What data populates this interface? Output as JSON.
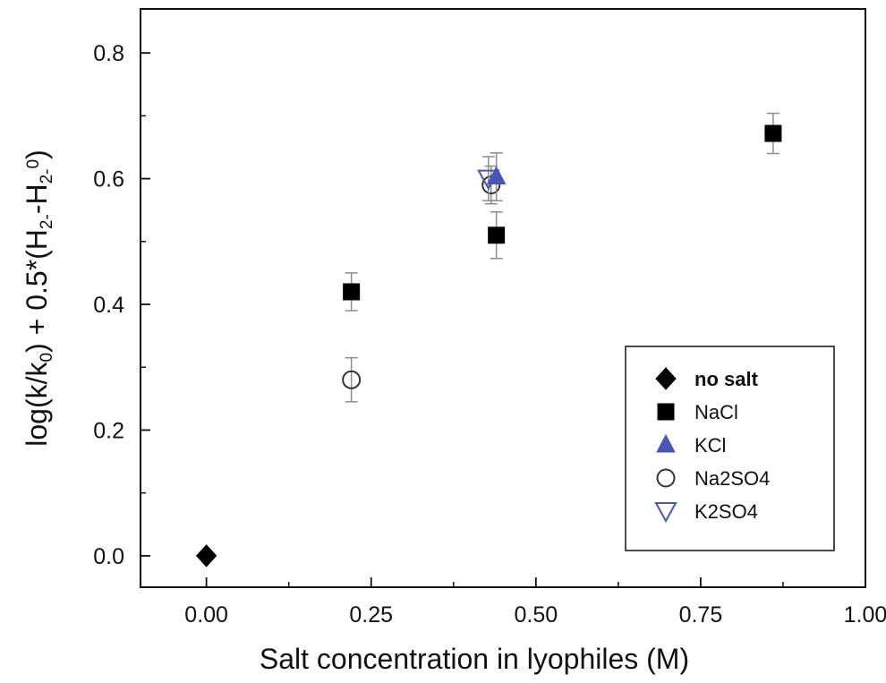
{
  "chart_data": {
    "type": "scatter",
    "xlabel": "Salt concentration in lyophiles (M)",
    "ylabel": {
      "parts": [
        {
          "t": "log(k/k",
          "s": "n"
        },
        {
          "t": "0",
          "s": "sub"
        },
        {
          "t": ") + 0.5*(H",
          "s": "n"
        },
        {
          "t": "2-",
          "s": "sub"
        },
        {
          "t": "-H",
          "s": "n"
        },
        {
          "t": "2-",
          "s": "sub"
        },
        {
          "t": "0",
          "s": "sup"
        },
        {
          "t": ")",
          "s": "n"
        }
      ]
    },
    "xlim": [
      -0.1,
      1.0
    ],
    "ylim": [
      -0.05,
      0.87
    ],
    "xticks": [
      0.0,
      0.25,
      0.5,
      0.75,
      1.0
    ],
    "xtick_labels": [
      "0.00",
      "0.25",
      "0.50",
      "0.75",
      "1.00"
    ],
    "yticks": [
      0.0,
      0.2,
      0.4,
      0.6,
      0.8
    ],
    "ytick_labels": [
      "0.0",
      "0.2",
      "0.4",
      "0.6",
      "0.8"
    ],
    "grid": false,
    "legend_position": "bottom-right",
    "series": [
      {
        "name": "no salt",
        "marker": "diamond",
        "color": "#000000",
        "filled": true,
        "points": [
          {
            "x": 0.0,
            "y": 0.0
          }
        ]
      },
      {
        "name": "NaCl",
        "marker": "square",
        "color": "#000000",
        "filled": true,
        "points": [
          {
            "x": 0.22,
            "y": 0.42,
            "err": 0.03
          },
          {
            "x": 0.44,
            "y": 0.51,
            "err": 0.037
          },
          {
            "x": 0.86,
            "y": 0.672,
            "err": 0.032
          }
        ]
      },
      {
        "name": "KCl",
        "marker": "triangle-up",
        "color": "#4b55b5",
        "filled": true,
        "points": [
          {
            "x": 0.44,
            "y": 0.603,
            "err": 0.038
          }
        ]
      },
      {
        "name": "Na2SO4",
        "marker": "circle",
        "color": "#333333",
        "filled": false,
        "points": [
          {
            "x": 0.22,
            "y": 0.28,
            "err": 0.035
          },
          {
            "x": 0.432,
            "y": 0.59,
            "err": 0.03
          }
        ]
      },
      {
        "name": "K2SO4",
        "marker": "triangle-down",
        "color": "#4b55b5",
        "filled": false,
        "points": [
          {
            "x": 0.428,
            "y": 0.6,
            "err": 0.035
          }
        ]
      }
    ]
  }
}
